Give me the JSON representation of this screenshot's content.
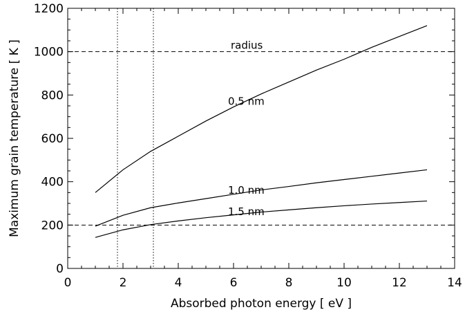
{
  "chart_data": {
    "type": "line",
    "title": "",
    "xlabel": "Absorbed photon energy [ eV ]",
    "ylabel": "Maximum grain temperature [ K ]",
    "xlim": [
      0,
      14
    ],
    "ylim": [
      0,
      1200
    ],
    "x_ticks": [
      0,
      2,
      4,
      6,
      8,
      10,
      12,
      14
    ],
    "y_ticks": [
      0,
      200,
      400,
      600,
      800,
      1000,
      1200
    ],
    "x_tick_labels": [
      "0",
      "2",
      "4",
      "6",
      "8",
      "10",
      "12",
      "14"
    ],
    "y_tick_labels": [
      "0",
      "200",
      "400",
      "600",
      "800",
      "1000",
      "1200"
    ],
    "legend_title": "radius",
    "grid": false,
    "series": [
      {
        "name": "0.5 nm",
        "x": [
          1,
          2,
          3,
          4,
          5,
          6,
          7,
          8,
          9,
          10,
          11,
          12,
          13
        ],
        "y": [
          350,
          455,
          540,
          610,
          680,
          745,
          805,
          860,
          915,
          965,
          1020,
          1070,
          1120
        ]
      },
      {
        "name": "1.0 nm",
        "x": [
          1,
          2,
          3,
          4,
          5,
          6,
          7,
          8,
          9,
          10,
          11,
          12,
          13
        ],
        "y": [
          195,
          245,
          280,
          302,
          322,
          342,
          362,
          378,
          395,
          410,
          425,
          440,
          455
        ]
      },
      {
        "name": "1.5 nm",
        "x": [
          1,
          2,
          3,
          4,
          5,
          6,
          7,
          8,
          9,
          10,
          11,
          12,
          13
        ],
        "y": [
          143,
          178,
          202,
          219,
          234,
          247,
          260,
          270,
          280,
          289,
          297,
          304,
          311
        ]
      }
    ],
    "reference_lines": {
      "horizontal_dashed_y": [
        1000,
        200
      ],
      "vertical_dotted_x": [
        1.8,
        3.1
      ]
    },
    "series_label_positions": [
      {
        "name": "0.5 nm",
        "x": 6.5,
        "y": 770
      },
      {
        "name": "1.0 nm",
        "x": 6.5,
        "y": 360
      },
      {
        "name": "1.5 nm",
        "x": 6.5,
        "y": 262
      }
    ],
    "legend_title_position": {
      "x": 6.5,
      "y": 1030
    }
  }
}
